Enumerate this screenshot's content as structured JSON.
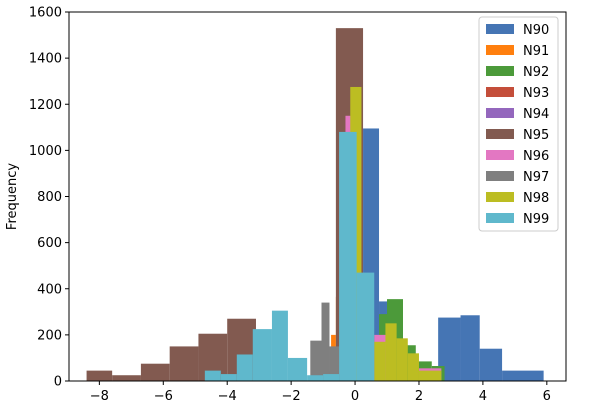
{
  "chart_data": {
    "type": "histogram",
    "ylabel": "Frequency",
    "xlim": [
      -8.95,
      6.6
    ],
    "ylim": [
      0,
      1600
    ],
    "xticks": [
      -8,
      -6,
      -4,
      -2,
      0,
      2,
      4,
      6
    ],
    "yticks": [
      0,
      200,
      400,
      600,
      800,
      1000,
      1200,
      1400,
      1600
    ],
    "legend_position": "top-right",
    "series": [
      {
        "name": "N90",
        "color": "#4575b4",
        "bins": [
          {
            "x0": -0.9,
            "x1": 0.25,
            "y": 40
          },
          {
            "x0": 0.25,
            "x1": 0.75,
            "y": 1095
          },
          {
            "x0": 0.75,
            "x1": 1.2,
            "y": 345
          },
          {
            "x0": 1.2,
            "x1": 2.6,
            "y": 40
          },
          {
            "x0": 2.6,
            "x1": 3.3,
            "y": 275
          },
          {
            "x0": 3.3,
            "x1": 3.9,
            "y": 285
          },
          {
            "x0": 3.9,
            "x1": 4.6,
            "y": 140
          },
          {
            "x0": 4.6,
            "x1": 5.9,
            "y": 45
          }
        ]
      },
      {
        "name": "N91",
        "color": "#ff7f0e",
        "bins": [
          {
            "x0": -0.75,
            "x1": -0.6,
            "y": 200
          },
          {
            "x0": -0.6,
            "x1": -0.45,
            "y": 365
          },
          {
            "x0": 1.6,
            "x1": 1.8,
            "y": 60
          }
        ]
      },
      {
        "name": "N92",
        "color": "#4c9a3a",
        "bins": [
          {
            "x0": 0.75,
            "x1": 1.0,
            "y": 290
          },
          {
            "x0": 1.0,
            "x1": 1.5,
            "y": 355
          },
          {
            "x0": 1.5,
            "x1": 1.9,
            "y": 155
          },
          {
            "x0": 1.9,
            "x1": 2.4,
            "y": 85
          },
          {
            "x0": 2.4,
            "x1": 2.8,
            "y": 65
          }
        ]
      },
      {
        "name": "N93",
        "color": "#c44e3a",
        "bins": [
          {
            "x0": -0.6,
            "x1": -0.4,
            "y": 100
          }
        ]
      },
      {
        "name": "N94",
        "color": "#9467bd",
        "bins": [
          {
            "x0": -0.5,
            "x1": -0.35,
            "y": 210
          }
        ]
      },
      {
        "name": "N95",
        "color": "#825a50",
        "bins": [
          {
            "x0": -8.4,
            "x1": -7.6,
            "y": 45
          },
          {
            "x0": -7.6,
            "x1": -6.7,
            "y": 25
          },
          {
            "x0": -6.7,
            "x1": -5.8,
            "y": 75
          },
          {
            "x0": -5.8,
            "x1": -4.9,
            "y": 150
          },
          {
            "x0": -4.9,
            "x1": -4.0,
            "y": 205
          },
          {
            "x0": -4.0,
            "x1": -3.1,
            "y": 270
          },
          {
            "x0": -0.6,
            "x1": 0.25,
            "y": 1530
          }
        ]
      },
      {
        "name": "N96",
        "color": "#e377c2",
        "bins": [
          {
            "x0": -0.3,
            "x1": -0.1,
            "y": 1150
          },
          {
            "x0": 0.6,
            "x1": 1.0,
            "y": 200
          },
          {
            "x0": 2.0,
            "x1": 2.7,
            "y": 55
          }
        ]
      },
      {
        "name": "N97",
        "color": "#7f7f7f",
        "bins": [
          {
            "x0": -1.4,
            "x1": -1.05,
            "y": 175
          },
          {
            "x0": -1.05,
            "x1": -0.8,
            "y": 340
          },
          {
            "x0": -0.8,
            "x1": -0.5,
            "y": 150
          }
        ]
      },
      {
        "name": "N98",
        "color": "#bcbd22",
        "bins": [
          {
            "x0": -0.15,
            "x1": 0.2,
            "y": 1275
          },
          {
            "x0": 0.6,
            "x1": 0.95,
            "y": 170
          },
          {
            "x0": 0.95,
            "x1": 1.3,
            "y": 250
          },
          {
            "x0": 1.3,
            "x1": 1.65,
            "y": 185
          },
          {
            "x0": 1.65,
            "x1": 2.0,
            "y": 120
          },
          {
            "x0": 2.0,
            "x1": 2.7,
            "y": 45
          }
        ]
      },
      {
        "name": "N99",
        "color": "#5fb8cc",
        "bins": [
          {
            "x0": -4.7,
            "x1": -4.2,
            "y": 45
          },
          {
            "x0": -4.2,
            "x1": -3.7,
            "y": 30
          },
          {
            "x0": -3.7,
            "x1": -3.2,
            "y": 115
          },
          {
            "x0": -3.2,
            "x1": -2.6,
            "y": 225
          },
          {
            "x0": -2.6,
            "x1": -2.1,
            "y": 305
          },
          {
            "x0": -2.1,
            "x1": -1.5,
            "y": 100
          },
          {
            "x0": -1.5,
            "x1": -1.0,
            "y": 25
          },
          {
            "x0": -1.0,
            "x1": -0.5,
            "y": 30
          },
          {
            "x0": -0.5,
            "x1": 0.05,
            "y": 1080
          },
          {
            "x0": 0.05,
            "x1": 0.6,
            "y": 470
          }
        ]
      }
    ]
  }
}
